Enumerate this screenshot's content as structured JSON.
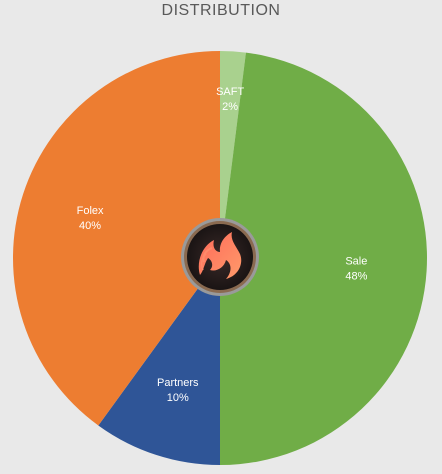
{
  "chart_data": {
    "type": "pie",
    "title": "DISTRIBUTION",
    "slices": [
      {
        "label": "SAFT",
        "value": 2,
        "pct_label": "2%",
        "color": "#a9d18e"
      },
      {
        "label": "Sale",
        "value": 48,
        "pct_label": "48%",
        "color": "#70ad47"
      },
      {
        "label": "Partners",
        "value": 10,
        "pct_label": "10%",
        "color": "#2f5597"
      },
      {
        "label": "Folex",
        "value": 40,
        "pct_label": "40%",
        "color": "#ed7d31"
      }
    ]
  },
  "logo": {
    "name": "fox-flame-logo"
  }
}
